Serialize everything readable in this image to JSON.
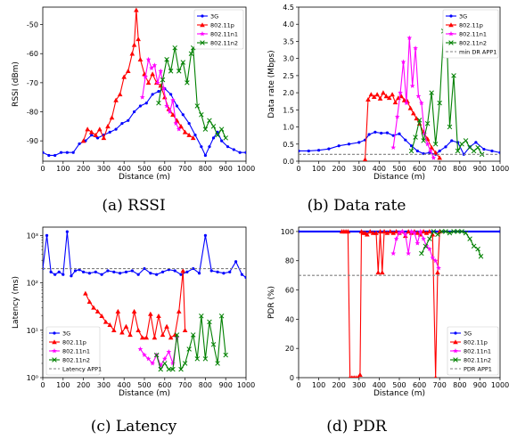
{
  "chart_data": [
    {
      "type": "line",
      "caption": "(a) RSSI",
      "xlabel": "Distance (m)",
      "ylabel": "RSSI (dBm)",
      "xlim": [
        0,
        1000
      ],
      "ylim": [
        -97,
        -44
      ],
      "xticks": [
        0,
        100,
        200,
        300,
        400,
        500,
        600,
        700,
        800,
        900,
        1000
      ],
      "yticks": [
        -90,
        -80,
        -70,
        -60,
        -50
      ],
      "yscale": "linear",
      "legend": "top-right",
      "series": [
        {
          "name": "3G",
          "color": "#0000ff",
          "marker": "dot",
          "x": [
            0,
            30,
            60,
            90,
            120,
            150,
            180,
            210,
            240,
            270,
            300,
            330,
            360,
            390,
            420,
            450,
            480,
            510,
            540,
            570,
            600,
            630,
            660,
            690,
            720,
            750,
            780,
            800,
            820,
            840,
            860,
            880,
            910,
            940,
            970,
            1000
          ],
          "y": [
            -94,
            -95,
            -95,
            -94,
            -94,
            -94,
            -91,
            -90,
            -88,
            -89,
            -88,
            -87,
            -86,
            -84,
            -83,
            -80,
            -78,
            -77,
            -74,
            -73,
            -72,
            -74,
            -78,
            -81,
            -84,
            -88,
            -92,
            -95,
            -92,
            -89,
            -87,
            -90,
            -92,
            -93,
            -94,
            -94
          ]
        },
        {
          "name": "802.11p",
          "color": "#ff0000",
          "marker": "triangle",
          "x": [
            200,
            220,
            240,
            260,
            280,
            300,
            320,
            340,
            360,
            380,
            400,
            420,
            440,
            450,
            460,
            470,
            480,
            500,
            520,
            540,
            560,
            580,
            600,
            620,
            640,
            660,
            680,
            700,
            720,
            740
          ],
          "y": [
            -90,
            -86,
            -87,
            -88,
            -86,
            -89,
            -85,
            -82,
            -76,
            -74,
            -68,
            -66,
            -60,
            -57,
            -45,
            -55,
            -62,
            -67,
            -70,
            -67,
            -70,
            -71,
            -75,
            -79,
            -81,
            -83,
            -85,
            -87,
            -88,
            -89
          ]
        },
        {
          "name": "802.11n1",
          "color": "#ff00ff",
          "marker": "star",
          "x": [
            490,
            505,
            520,
            535,
            550,
            565,
            580,
            595,
            610,
            625,
            640,
            655,
            670
          ],
          "y": [
            -75,
            -68,
            -62,
            -65,
            -64,
            -70,
            -66,
            -72,
            -78,
            -80,
            -76,
            -84,
            -86
          ]
        },
        {
          "name": "802.11n2",
          "color": "#008000",
          "marker": "x",
          "x": [
            570,
            590,
            610,
            630,
            650,
            670,
            690,
            710,
            730,
            740,
            760,
            780,
            800,
            820,
            840,
            860,
            880,
            900
          ],
          "y": [
            -77,
            -69,
            -62,
            -66,
            -58,
            -66,
            -63,
            -70,
            -60,
            -58,
            -78,
            -81,
            -86,
            -83,
            -85,
            -88,
            -86,
            -89
          ]
        }
      ]
    },
    {
      "type": "line",
      "caption": "(b) Data rate",
      "xlabel": "Distance (m)",
      "ylabel": "Data rate (Mbps)",
      "xlim": [
        0,
        1000
      ],
      "ylim": [
        0,
        4.5
      ],
      "xticks": [
        0,
        100,
        200,
        300,
        400,
        500,
        600,
        700,
        800,
        900,
        1000
      ],
      "yticks": [
        0.0,
        0.5,
        1.0,
        1.5,
        2.0,
        2.5,
        3.0,
        3.5,
        4.0,
        4.5
      ],
      "yscale": "linear",
      "legend": "top-right",
      "series": [
        {
          "name": "3G",
          "color": "#0000ff",
          "marker": "dot",
          "x": [
            0,
            50,
            100,
            150,
            200,
            250,
            300,
            330,
            350,
            380,
            410,
            440,
            470,
            500,
            530,
            560,
            590,
            620,
            650,
            680,
            700,
            730,
            760,
            790,
            820,
            850,
            880,
            920,
            960,
            1000
          ],
          "y": [
            0.3,
            0.3,
            0.32,
            0.36,
            0.45,
            0.5,
            0.55,
            0.62,
            0.78,
            0.85,
            0.82,
            0.83,
            0.75,
            0.8,
            0.62,
            0.45,
            0.3,
            0.22,
            0.25,
            0.2,
            0.3,
            0.42,
            0.6,
            0.55,
            0.2,
            0.42,
            0.55,
            0.35,
            0.3,
            0.25
          ]
        },
        {
          "name": "802.11p",
          "color": "#ff0000",
          "marker": "triangle",
          "x": [
            330,
            345,
            360,
            375,
            390,
            405,
            420,
            435,
            450,
            465,
            480,
            495,
            510,
            525,
            540,
            555,
            570,
            585,
            600,
            620,
            640,
            660,
            680,
            700
          ],
          "y": [
            0.05,
            1.8,
            1.95,
            1.88,
            1.95,
            1.83,
            2.0,
            1.9,
            1.85,
            1.95,
            1.72,
            1.85,
            1.9,
            1.78,
            1.75,
            1.55,
            1.4,
            1.25,
            1.1,
            0.85,
            0.65,
            0.4,
            0.25,
            0.1
          ]
        },
        {
          "name": "802.11n1",
          "color": "#ff00ff",
          "marker": "star",
          "x": [
            470,
            490,
            505,
            520,
            535,
            550,
            565,
            580,
            595,
            610,
            625,
            640,
            655,
            670
          ],
          "y": [
            0.4,
            1.3,
            2.0,
            2.9,
            1.7,
            3.6,
            2.2,
            3.3,
            1.9,
            1.7,
            0.8,
            0.5,
            0.3,
            0.1
          ]
        },
        {
          "name": "802.11n2",
          "color": "#008000",
          "marker": "x",
          "x": [
            560,
            580,
            600,
            620,
            640,
            660,
            680,
            700,
            720,
            735,
            750,
            770,
            790,
            810,
            830,
            850,
            870,
            890,
            910
          ],
          "y": [
            0.3,
            0.7,
            1.2,
            0.6,
            1.1,
            2.0,
            0.5,
            1.7,
            3.8,
            3.7,
            1.0,
            2.5,
            0.3,
            0.5,
            0.6,
            0.4,
            0.3,
            0.4,
            0.2
          ]
        },
        {
          "name": "min DR APP1",
          "color": "#808080",
          "marker": "none",
          "dashed": true,
          "x": [
            0,
            1000
          ],
          "y": [
            0.2,
            0.2
          ]
        }
      ]
    },
    {
      "type": "line",
      "caption": "(c) Latency",
      "xlabel": "Distance (m)",
      "ylabel": "Latency (ms)",
      "xlim": [
        0,
        1000
      ],
      "ylim": [
        1,
        1500
      ],
      "xticks": [
        0,
        100,
        200,
        300,
        400,
        500,
        600,
        700,
        800,
        900,
        1000
      ],
      "yticks": [
        1,
        10,
        100,
        1000
      ],
      "yticklabels": [
        "10⁰",
        "10¹",
        "10²",
        "10³"
      ],
      "yscale": "log",
      "legend": "bottom-left",
      "series": [
        {
          "name": "3G",
          "color": "#0000ff",
          "marker": "dot",
          "x": [
            0,
            20,
            40,
            60,
            80,
            100,
            120,
            140,
            160,
            180,
            200,
            230,
            260,
            290,
            320,
            350,
            380,
            410,
            440,
            470,
            500,
            530,
            560,
            590,
            620,
            650,
            680,
            710,
            740,
            770,
            800,
            830,
            860,
            890,
            920,
            950,
            980,
            1000
          ],
          "y": [
            200,
            1000,
            170,
            150,
            170,
            150,
            1200,
            140,
            180,
            190,
            170,
            160,
            170,
            150,
            180,
            170,
            160,
            170,
            180,
            150,
            200,
            160,
            150,
            170,
            190,
            180,
            150,
            170,
            200,
            160,
            1000,
            180,
            170,
            160,
            170,
            280,
            150,
            130
          ]
        },
        {
          "name": "802.11p",
          "color": "#ff0000",
          "marker": "triangle",
          "x": [
            210,
            230,
            250,
            270,
            290,
            310,
            330,
            350,
            370,
            390,
            410,
            430,
            450,
            470,
            490,
            510,
            530,
            550,
            570,
            590,
            610,
            630,
            650,
            670,
            690,
            700
          ],
          "y": [
            60,
            40,
            30,
            25,
            20,
            15,
            13,
            10,
            25,
            9,
            12,
            8,
            25,
            10,
            7,
            7,
            22,
            7,
            20,
            8,
            12,
            7,
            8,
            25,
            180,
            10
          ]
        },
        {
          "name": "802.11n1",
          "color": "#ff00ff",
          "marker": "star",
          "x": [
            480,
            500,
            520,
            540,
            560,
            580,
            600,
            620,
            640,
            660
          ],
          "y": [
            4,
            3,
            2.5,
            2,
            3,
            1.8,
            2.5,
            3.5,
            2,
            7
          ]
        },
        {
          "name": "802.11n2",
          "color": "#008000",
          "marker": "x",
          "x": [
            560,
            580,
            600,
            620,
            640,
            660,
            680,
            700,
            720,
            740,
            760,
            780,
            800,
            820,
            840,
            860,
            880,
            900
          ],
          "y": [
            3,
            1.5,
            2,
            1.5,
            1.5,
            8,
            1.5,
            2,
            4,
            8,
            2.5,
            20,
            2.5,
            15,
            5,
            2,
            20,
            3
          ]
        },
        {
          "name": "Latency APP1",
          "color": "#808080",
          "marker": "none",
          "dashed": true,
          "x": [
            0,
            1000
          ],
          "y": [
            200,
            200
          ]
        }
      ]
    },
    {
      "type": "line",
      "caption": "(d) PDR",
      "xlabel": "Distance (m)",
      "ylabel": "PDR (%)",
      "xlim": [
        0,
        1000
      ],
      "ylim": [
        0,
        103
      ],
      "xticks": [
        0,
        100,
        200,
        300,
        400,
        500,
        600,
        700,
        800,
        900,
        1000
      ],
      "yticks": [
        0,
        20,
        40,
        60,
        80,
        100
      ],
      "yscale": "linear",
      "legend": "bottom-right",
      "series": [
        {
          "name": "3G",
          "color": "#0000ff",
          "marker": "dot",
          "x": [
            0,
            1000
          ],
          "y": [
            100,
            100
          ]
        },
        {
          "name": "802.11p",
          "color": "#ff0000",
          "marker": "triangle",
          "x": [
            215,
            225,
            235,
            245,
            255,
            265,
            275,
            285,
            295,
            305,
            312,
            320,
            330,
            340,
            355,
            370,
            385,
            395,
            405,
            415,
            425,
            440,
            455,
            470,
            485,
            500,
            515,
            530,
            545,
            560,
            575,
            590,
            605,
            620,
            635,
            650,
            665,
            680,
            690,
            700
          ],
          "y": [
            100,
            100,
            100,
            100,
            0,
            0,
            0,
            0,
            0,
            2,
            100,
            99,
            99,
            98,
            100,
            99,
            99,
            72,
            100,
            72,
            100,
            99,
            100,
            99,
            100,
            99,
            100,
            97,
            100,
            99,
            100,
            99,
            98,
            100,
            99,
            100,
            98,
            0,
            72,
            100
          ]
        },
        {
          "name": "802.11n1",
          "color": "#ff00ff",
          "marker": "star",
          "x": [
            470,
            485,
            500,
            515,
            530,
            545,
            560,
            575,
            590,
            605,
            620,
            635,
            650,
            665,
            680,
            695
          ],
          "y": [
            85,
            95,
            99,
            100,
            98,
            85,
            100,
            99,
            92,
            100,
            95,
            90,
            88,
            82,
            80,
            75
          ]
        },
        {
          "name": "802.11n2",
          "color": "#008000",
          "marker": "x",
          "x": [
            610,
            630,
            650,
            670,
            690,
            710,
            730,
            750,
            770,
            790,
            810,
            830,
            850,
            870,
            890,
            905
          ],
          "y": [
            85,
            90,
            95,
            100,
            98,
            100,
            100,
            99,
            100,
            100,
            100,
            99,
            95,
            90,
            88,
            83
          ]
        },
        {
          "name": "PDR APP1",
          "color": "#808080",
          "marker": "none",
          "dashed": true,
          "x": [
            0,
            1000
          ],
          "y": [
            70,
            70
          ]
        }
      ]
    }
  ]
}
